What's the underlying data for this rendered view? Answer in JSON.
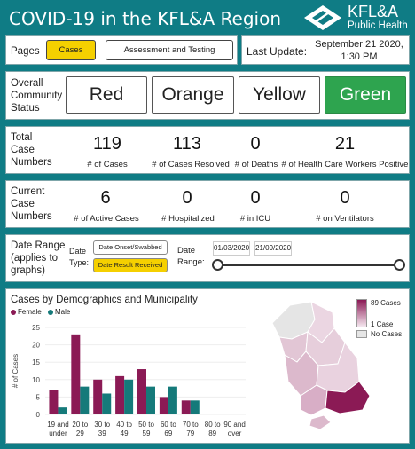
{
  "header": {
    "title": "COVID-19 in the KFL&A Region",
    "logo_line1": "KFL&A",
    "logo_line2": "Public Health"
  },
  "pages": {
    "label": "Pages",
    "tabs": [
      {
        "label": "Cases",
        "active": true
      },
      {
        "label": "Assessment and Testing",
        "active": false
      }
    ]
  },
  "last_update": {
    "label": "Last Update:",
    "line1": "September 21 2020,",
    "line2": "1:30 PM"
  },
  "status": {
    "label_line1": "Overall",
    "label_line2": "Community",
    "label_line3": "Status",
    "levels": [
      {
        "label": "Red"
      },
      {
        "label": "Orange"
      },
      {
        "label": "Yellow"
      },
      {
        "label": "Green",
        "active": true
      }
    ]
  },
  "total": {
    "label_line1": "Total",
    "label_line2": "Case",
    "label_line3": "Numbers",
    "stats": [
      {
        "value": "119",
        "label": "# of Cases"
      },
      {
        "value": "113",
        "label": "# of Cases Resolved"
      },
      {
        "value": "0",
        "label": "# of Deaths"
      },
      {
        "value": "21",
        "label": "# of Health Care Workers Positive"
      }
    ]
  },
  "current": {
    "label_line1": "Current",
    "label_line2": "Case",
    "label_line3": "Numbers",
    "stats": [
      {
        "value": "6",
        "label": "# of Active Cases"
      },
      {
        "value": "0",
        "label": "# Hospitalized"
      },
      {
        "value": "0",
        "label": "# in ICU"
      },
      {
        "value": "0",
        "label": "# on Ventilators"
      }
    ]
  },
  "date_range": {
    "label_line1": "Date Range",
    "label_line2": "(applies to",
    "label_line3": "graphs)",
    "type_label_line1": "Date",
    "type_label_line2": "Type:",
    "type_options": [
      {
        "label": "Date Onset/Swabbed",
        "active": false
      },
      {
        "label": "Date Result Received",
        "active": true
      }
    ],
    "range_label_line1": "Date",
    "range_label_line2": "Range:",
    "start": "01/03/2020",
    "end": "21/09/2020"
  },
  "demographics": {
    "title": "Cases by Demographics and Municipality",
    "female_label": "Female",
    "male_label": "Male"
  },
  "map_legend": {
    "max_label": "89 Cases",
    "min_label": "1 Case",
    "none_label": "No Cases"
  },
  "colors": {
    "female": "#8b1a55",
    "male": "#157a7a",
    "green": "#2ea44f",
    "accent": "#0f7c85",
    "active_tab": "#f5d000"
  },
  "chart_data": {
    "type": "bar",
    "categories": [
      [
        "19 and",
        "under"
      ],
      [
        "20 to",
        "29"
      ],
      [
        "30 to",
        "39"
      ],
      [
        "40 to",
        "49"
      ],
      [
        "50 to",
        "59"
      ],
      [
        "60 to",
        "69"
      ],
      [
        "70 to",
        "79"
      ],
      [
        "80 to",
        "89"
      ],
      [
        "90 and",
        "over"
      ]
    ],
    "series": [
      {
        "name": "Female",
        "values": [
          7,
          23,
          10,
          11,
          13,
          5,
          4,
          0,
          0
        ]
      },
      {
        "name": "Male",
        "values": [
          2,
          8,
          6,
          10,
          8,
          8,
          4,
          0,
          0
        ]
      }
    ],
    "ylabel": "# of Cases",
    "ylim": [
      0,
      25
    ],
    "yticks": [
      0,
      5,
      10,
      15,
      20,
      25
    ],
    "legend": "top-left"
  }
}
